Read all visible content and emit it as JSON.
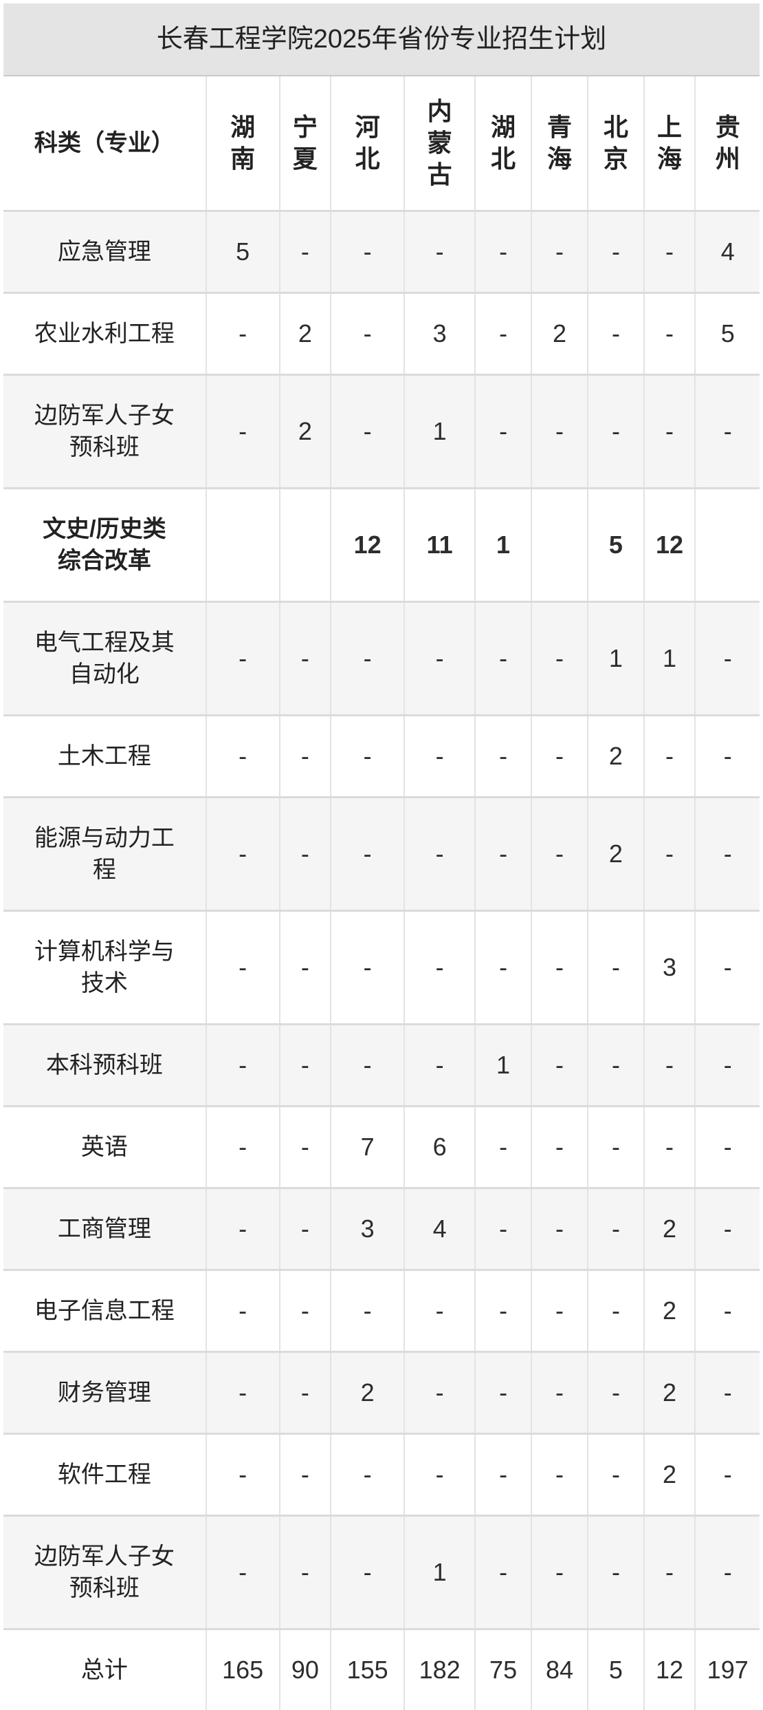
{
  "title": "长春工程学院2025年省份专业招生计划",
  "colors": {
    "title_bar_bg": "#e4e4e4",
    "row_stripe_bg": "#f5f5f6",
    "grid_line": "#dbdbdb",
    "text": "#2d2d2d"
  },
  "chart_data": {
    "type": "table",
    "title": "长春工程学院2025年省份专业招生计划",
    "row_header": "科类（专业）",
    "columns": [
      "湖南",
      "宁夏",
      "河北",
      "内蒙古",
      "湖北",
      "青海",
      "北京",
      "上海",
      "贵州"
    ],
    "rows": [
      {
        "label": "应急管理",
        "values": [
          "5",
          "-",
          "-",
          "-",
          "-",
          "-",
          "-",
          "-",
          "4"
        ]
      },
      {
        "label": "农业水利工程",
        "values": [
          "-",
          "2",
          "-",
          "3",
          "-",
          "2",
          "-",
          "-",
          "5"
        ]
      },
      {
        "label": "边防军人子女\n预科班",
        "values": [
          "-",
          "2",
          "-",
          "1",
          "-",
          "-",
          "-",
          "-",
          "-"
        ]
      },
      {
        "label": "文史/历史类\n综合改革",
        "bold": true,
        "values": [
          "",
          "",
          "12",
          "11",
          "1",
          "",
          "5",
          "12",
          ""
        ]
      },
      {
        "label": "电气工程及其\n自动化",
        "values": [
          "-",
          "-",
          "-",
          "-",
          "-",
          "-",
          "1",
          "1",
          "-"
        ]
      },
      {
        "label": "土木工程",
        "values": [
          "-",
          "-",
          "-",
          "-",
          "-",
          "-",
          "2",
          "-",
          "-"
        ]
      },
      {
        "label": "能源与动力工\n程",
        "values": [
          "-",
          "-",
          "-",
          "-",
          "-",
          "-",
          "2",
          "-",
          "-"
        ]
      },
      {
        "label": "计算机科学与\n技术",
        "values": [
          "-",
          "-",
          "-",
          "-",
          "-",
          "-",
          "-",
          "3",
          "-"
        ]
      },
      {
        "label": "本科预科班",
        "values": [
          "-",
          "-",
          "-",
          "-",
          "1",
          "-",
          "-",
          "-",
          "-"
        ]
      },
      {
        "label": "英语",
        "values": [
          "-",
          "-",
          "7",
          "6",
          "-",
          "-",
          "-",
          "-",
          "-"
        ]
      },
      {
        "label": "工商管理",
        "values": [
          "-",
          "-",
          "3",
          "4",
          "-",
          "-",
          "-",
          "2",
          "-"
        ]
      },
      {
        "label": "电子信息工程",
        "values": [
          "-",
          "-",
          "-",
          "-",
          "-",
          "-",
          "-",
          "2",
          "-"
        ]
      },
      {
        "label": "财务管理",
        "values": [
          "-",
          "-",
          "2",
          "-",
          "-",
          "-",
          "-",
          "2",
          "-"
        ]
      },
      {
        "label": "软件工程",
        "values": [
          "-",
          "-",
          "-",
          "-",
          "-",
          "-",
          "-",
          "2",
          "-"
        ]
      },
      {
        "label": "边防军人子女\n预科班",
        "values": [
          "-",
          "-",
          "-",
          "1",
          "-",
          "-",
          "-",
          "-",
          "-"
        ]
      },
      {
        "label": "总计",
        "values": [
          "165",
          "90",
          "155",
          "182",
          "75",
          "84",
          "5",
          "12",
          "197"
        ]
      }
    ]
  }
}
